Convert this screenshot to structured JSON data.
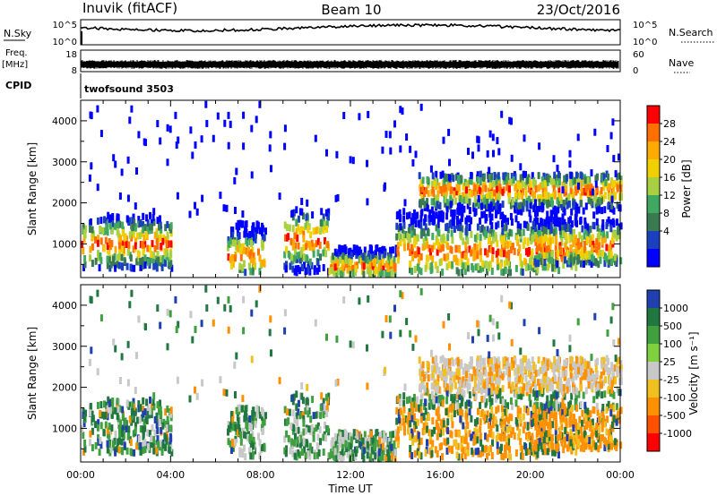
{
  "header": {
    "station": "Inuvik (fitACF)",
    "beam": "Beam 10",
    "date": "23/Oct/2016"
  },
  "top_panels": {
    "nsky_label": "N.Sky",
    "nsky_ticks": [
      "10^5",
      "10^0"
    ],
    "nsearch_label": "N.Search",
    "nsearch_ticks": [
      "10^5",
      "10^0"
    ],
    "freq_label": "Freq.",
    "freq_unit": "[MHz]",
    "freq_ticks": [
      "18",
      "8"
    ],
    "nave_label": "Nave",
    "nave_ticks": [
      "60",
      "0"
    ],
    "cpid_label": "CPID",
    "cpid_value": "twofsound 3503"
  },
  "chart_data": [
    {
      "type": "heatmap",
      "title": "",
      "xlabel": "",
      "ylabel": "Slant Range [km]",
      "xlim": [
        0,
        24
      ],
      "ylim": [
        180,
        4500
      ],
      "y_ticks": [
        1000,
        2000,
        3000,
        4000
      ],
      "y_tick_labels": [
        "1000",
        "2000",
        "3000",
        "4000"
      ],
      "colorbar": {
        "label": "Power [dB]",
        "levels": [
          "28",
          "24",
          "20",
          "16",
          "12",
          "8",
          "4"
        ],
        "colors": [
          "#ff0000",
          "#ff7000",
          "#ffaa00",
          "#f0d000",
          "#a8d040",
          "#40a860",
          "#3a7a50",
          "#1a40c0",
          "#0000ff"
        ]
      },
      "echo_bands": [
        {
          "t0": 0,
          "t1": 4,
          "r0": 400,
          "r1": 1700,
          "core": 1000
        },
        {
          "t0": 6.5,
          "t1": 8.2,
          "r0": 300,
          "r1": 1500,
          "core": 700
        },
        {
          "t0": 9,
          "t1": 11,
          "r0": 300,
          "r1": 1800,
          "core": 1100
        },
        {
          "t0": 11,
          "t1": 14,
          "r0": 250,
          "r1": 900,
          "core": 450
        },
        {
          "t0": 14,
          "t1": 22,
          "r0": 300,
          "r1": 1800,
          "core": 800
        },
        {
          "t0": 20,
          "t1": 24,
          "r0": 500,
          "r1": 1600,
          "core": 950
        },
        {
          "t0": 15,
          "t1": 24,
          "r0": 1800,
          "r1": 2700,
          "core": 2300
        }
      ]
    },
    {
      "type": "heatmap",
      "title": "",
      "xlabel": "Time UT",
      "ylabel": "Slant Range [km]",
      "xlim": [
        0,
        24
      ],
      "ylim": [
        180,
        4500
      ],
      "x_tick_labels": [
        "00:00",
        "04:00",
        "08:00",
        "12:00",
        "16:00",
        "20:00",
        "00:00"
      ],
      "y_ticks": [
        1000,
        2000,
        3000,
        4000
      ],
      "y_tick_labels": [
        "1000",
        "2000",
        "3000",
        "4000"
      ],
      "colorbar": {
        "label": "Velocity [m s⁻¹]",
        "levels": [
          "1000",
          "500",
          "100",
          "25",
          "-25",
          "-100",
          "-500",
          "-1000"
        ],
        "colors": [
          "#2040b0",
          "#207840",
          "#40a040",
          "#80d040",
          "#c8c8c8",
          "#f0c020",
          "#ff9000",
          "#ff5000",
          "#ff0000"
        ]
      }
    }
  ]
}
